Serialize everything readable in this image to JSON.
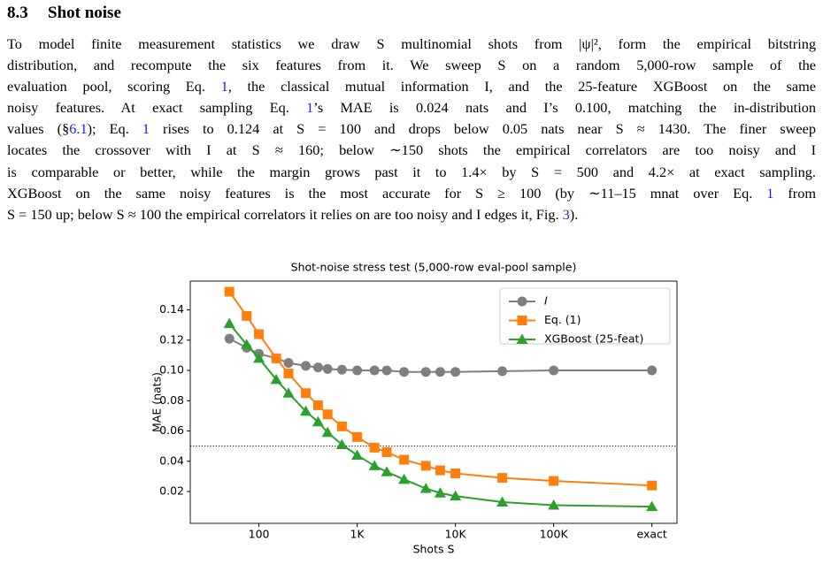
{
  "section": {
    "number": "8.3",
    "title": "Shot noise"
  },
  "paragraph": [
    [
      "To model finite measurement statistics we draw S multinomial shots from |ψ|², form the empirical bitstring"
    ],
    [
      "distribution, and recompute the six features from it. We sweep S on a random 5,000-row sample of the"
    ],
    [
      "evaluation pool, scoring Eq. ",
      {
        "link": "1"
      },
      ", the classical mutual information I, and the 25-feature XGBoost on the same"
    ],
    [
      "noisy features. At exact sampling Eq. ",
      {
        "link": "1"
      },
      "’s MAE is 0.024 nats and I’s 0.100, matching the in-distribution"
    ],
    [
      "values (§",
      {
        "link": "6.1"
      },
      "); Eq. ",
      {
        "link": "1"
      },
      " rises to 0.124 at S = 100 and drops below 0.05 nats near S ≈ 1430. The finer sweep"
    ],
    [
      "locates the crossover with I at S ≈ 160; below ∼150 shots the empirical correlators are too noisy and I"
    ],
    [
      "is comparable or better, while the margin grows past it to 1.4× by S = 500 and 4.2× at exact sampling."
    ],
    [
      "XGBoost on the same noisy features is the most accurate for S ≥ 100 (by ∼11–15 mnat over Eq. ",
      {
        "link": "1"
      },
      " from"
    ],
    [
      "S = 150 up; below S ≈ 100 the empirical correlators it relies on are too noisy and I edges it, Fig. ",
      {
        "link": "3"
      },
      ")."
    ]
  ],
  "chart_data": {
    "type": "line",
    "title": "Shot-noise stress test (5,000-row eval-pool sample)",
    "x_label": "Shots S",
    "y_label": "MAE (nats)",
    "xscale": "log",
    "x": [
      50,
      75,
      100,
      150,
      200,
      300,
      400,
      500,
      700,
      1000,
      1500,
      2000,
      3000,
      5000,
      7000,
      10000,
      30000,
      100000,
      1000000
    ],
    "series": [
      {
        "name": "I",
        "color": "#7f7f7f",
        "marker": "circle",
        "values": [
          0.121,
          0.115,
          0.111,
          0.108,
          0.105,
          0.103,
          0.102,
          0.101,
          0.1005,
          0.1,
          0.1,
          0.1,
          0.099,
          0.099,
          0.099,
          0.099,
          0.0995,
          0.1,
          0.1
        ]
      },
      {
        "name": "Eq. (1)",
        "color": "#ff7f0e",
        "marker": "square",
        "values": [
          0.152,
          0.136,
          0.124,
          0.108,
          0.098,
          0.085,
          0.077,
          0.071,
          0.063,
          0.056,
          0.049,
          0.046,
          0.041,
          0.037,
          0.034,
          0.032,
          0.029,
          0.027,
          0.024
        ]
      },
      {
        "name": "XGBoost (25-feat)",
        "color": "#2ca02c",
        "marker": "triangle",
        "values": [
          0.131,
          0.117,
          0.108,
          0.094,
          0.085,
          0.073,
          0.066,
          0.059,
          0.051,
          0.044,
          0.037,
          0.033,
          0.028,
          0.022,
          0.019,
          0.017,
          0.013,
          0.011,
          0.01
        ]
      }
    ],
    "hline": 0.05,
    "xlim": [
      20,
      1800000
    ],
    "xticks": [
      100,
      {
        "value": 1000,
        "label": "1K"
      },
      {
        "value": 10000,
        "label": "10K"
      },
      {
        "value": 100000,
        "label": "100K"
      },
      {
        "value": 1000000,
        "label": "exact"
      }
    ],
    "ylim": [
      -0.001,
      0.159
    ],
    "yticks": [
      0.02,
      0.04,
      0.06,
      0.08,
      0.1,
      0.12,
      0.14
    ],
    "legend": "upper right",
    "grid": false
  }
}
